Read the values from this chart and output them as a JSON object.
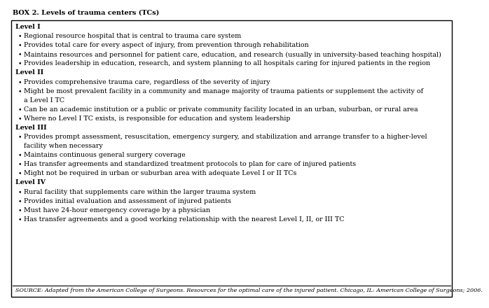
{
  "title": "BOX 2. Levels of trauma centers (TCs)",
  "background_color": "#ffffff",
  "border_color": "#000000",
  "title_fontsize": 7.0,
  "content_fontsize": 6.8,
  "source_fontsize": 5.8,
  "levels": [
    {
      "heading": "Level I",
      "bullets": [
        "Regional resource hospital that is central to trauma care system",
        "Provides total care for every aspect of injury, from prevention through rehabilitation",
        "Maintains resources and personnel for patient care, education, and research (usually in university-based teaching hospital)",
        "Provides leadership in education, research, and system planning to all hospitals caring for injured patients in the region"
      ]
    },
    {
      "heading": "Level II",
      "bullets": [
        "Provides comprehensive trauma care, regardless of the severity of injury",
        "Might be most prevalent facility in a community and manage majority of trauma patients or supplement the activity of\na Level I TC",
        "Can be an academic institution or a public or private community facility located in an urban, suburban, or rural area",
        "Where no Level I TC exists, is responsible for education and system leadership"
      ]
    },
    {
      "heading": "Level III",
      "bullets": [
        "Provides prompt assessment, resuscitation, emergency surgery, and stabilization and arrange transfer to a higher-level\nfacility when necessary",
        "Maintains continuous general surgery coverage",
        "Has transfer agreements and standardized treatment protocols to plan for care of injured patients",
        "Might not be required in urban or suburban area with adequate Level I or II TCs"
      ]
    },
    {
      "heading": "Level IV",
      "bullets": [
        "Rural facility that supplements care within the larger trauma system",
        "Provides initial evaluation and assessment of injured patients",
        "Must have 24-hour emergency coverage by a physician",
        "Has transfer agreements and a good working relationship with the nearest Level I, II, or III TC"
      ]
    }
  ],
  "source": "SOURCE: Adapted from the American College of Surgeons. Resources for the optimal care of the injured patient. Chicago, IL: American College of Surgeons; 2006."
}
